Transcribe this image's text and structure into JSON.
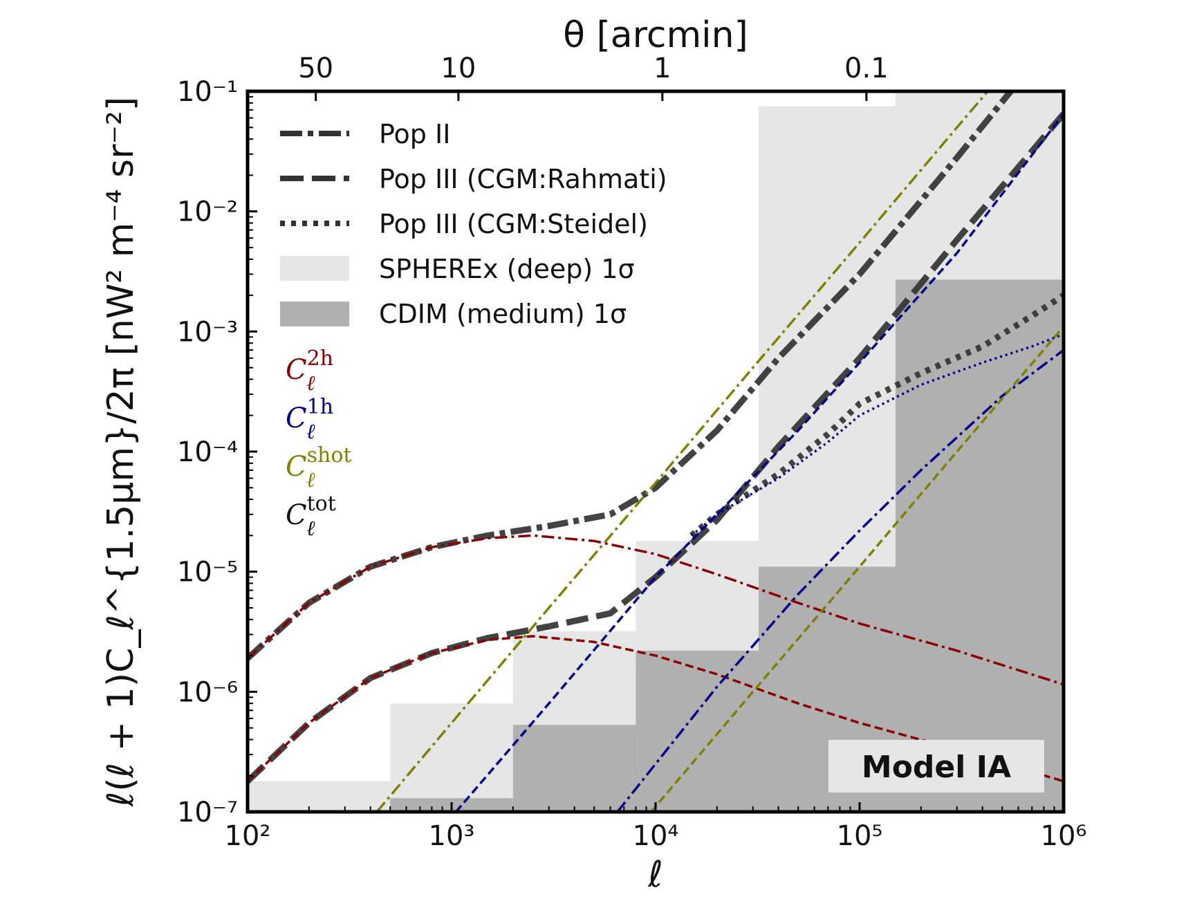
{
  "chart_data": {
    "type": "line",
    "xlabel": "ℓ",
    "ylabel": "ℓ(ℓ + 1)C_ℓ^{1.5μm}/2π [nW² m⁻⁴ sr⁻²]",
    "top_xlabel": "θ [arcmin]",
    "xscale": "log",
    "yscale": "log",
    "xlim": [
      100,
      1000000
    ],
    "ylim": [
      1e-07,
      0.1
    ],
    "grid": false,
    "legend_position": "top-left",
    "x_tick_labels": [
      "10²",
      "10³",
      "10⁴",
      "10⁵",
      "10⁶"
    ],
    "y_tick_labels": [
      "10⁻⁷",
      "10⁻⁶",
      "10⁻⁵",
      "10⁻⁴",
      "10⁻³",
      "10⁻²",
      "10⁻¹"
    ],
    "top_ticks": [
      {
        "label": "50",
        "ell": 216
      },
      {
        "label": "10",
        "ell": 1080
      },
      {
        "label": "1",
        "ell": 10800
      },
      {
        "label": "0.1",
        "ell": 108000
      }
    ],
    "legend": [
      {
        "label": "Pop II",
        "style": "dashdot"
      },
      {
        "label": "Pop III (CGM:Rahmati)",
        "style": "dashed"
      },
      {
        "label": "Pop III (CGM:Steidel)",
        "style": "dotted"
      },
      {
        "label": "SPHEREx (deep) 1σ",
        "style": "band",
        "color": "#e6e6e6"
      },
      {
        "label": "CDIM (medium) 1σ",
        "style": "band",
        "color": "#b0b0b0"
      }
    ],
    "component_labels": [
      {
        "base": "C",
        "sub": "ℓ",
        "sup": "2h",
        "color": "#8b0000"
      },
      {
        "base": "C",
        "sub": "ℓ",
        "sup": "1h",
        "color": "#00008b"
      },
      {
        "base": "C",
        "sub": "ℓ",
        "sup": "shot",
        "color": "#808000"
      },
      {
        "base": "C",
        "sub": "ℓ",
        "sup": "tot",
        "color": "#111111"
      }
    ],
    "annotation": "Model IA",
    "bands": [
      {
        "name": "SPHEREx (deep) 1σ",
        "color": "#e6e6e6",
        "edges": [
          100,
          500,
          2000,
          8000,
          32000,
          150000,
          1000000
        ],
        "values": [
          1.8e-07,
          8e-07,
          3.2e-06,
          1.8e-05,
          0.075,
          0.1
        ]
      },
      {
        "name": "CDIM (medium) 1σ",
        "color": "#b0b0b0",
        "edges": [
          500,
          2000,
          8000,
          32000,
          150000,
          1000000
        ],
        "values": [
          1.3e-07,
          5.3e-07,
          2.2e-06,
          1.1e-05,
          0.0027
        ]
      }
    ],
    "series": [
      {
        "component": "tot",
        "model": "Pop II",
        "color": "#333333",
        "style": "dashdot",
        "thick": true,
        "x": [
          100,
          200,
          400,
          800,
          1500,
          3000,
          6000,
          10000,
          20000,
          40000,
          100000,
          300000,
          1000000
        ],
        "y": [
          1.9e-06,
          5.5e-06,
          1.1e-05,
          1.6e-05,
          2e-05,
          2.4e-05,
          3e-05,
          5e-05,
          0.00015,
          0.0006,
          0.003,
          0.028,
          0.35
        ]
      },
      {
        "component": "tot",
        "model": "Pop III (CGM:Rahmati)",
        "color": "#333333",
        "style": "dashed",
        "thick": true,
        "x": [
          100,
          200,
          400,
          800,
          1500,
          3000,
          6000,
          10000,
          20000,
          40000,
          100000,
          300000,
          1000000
        ],
        "y": [
          1.8e-07,
          5.5e-07,
          1.3e-06,
          2.1e-06,
          2.8e-06,
          3.5e-06,
          4.5e-06,
          9e-06,
          2.7e-05,
          0.00011,
          0.0006,
          0.0058,
          0.065
        ]
      },
      {
        "component": "tot",
        "model": "Pop III (CGM:Steidel)",
        "color": "#333333",
        "style": "dotted",
        "thick": true,
        "x": [
          15000,
          20000,
          40000,
          70000,
          100000,
          200000,
          400000,
          700000,
          1000000
        ],
        "y": [
          2e-05,
          3e-05,
          6.5e-05,
          0.00014,
          0.00025,
          0.00045,
          0.00075,
          0.00135,
          0.002
        ]
      },
      {
        "component": "2h",
        "model": "Pop II",
        "color": "#8b0000",
        "style": "dashdot",
        "x": [
          100,
          200,
          400,
          800,
          1500,
          2500,
          5000,
          10000,
          20000,
          50000,
          100000,
          300000,
          1000000
        ],
        "y": [
          1.9e-06,
          5.5e-06,
          1.1e-05,
          1.6e-05,
          1.9e-05,
          2e-05,
          1.8e-05,
          1.4e-05,
          9.5e-06,
          5.5e-06,
          3.7e-06,
          2.2e-06,
          1.15e-06
        ]
      },
      {
        "component": "2h",
        "model": "Pop III",
        "color": "#8b0000",
        "style": "dashed",
        "x": [
          100,
          200,
          400,
          800,
          1500,
          2500,
          5000,
          10000,
          20000,
          50000,
          100000,
          300000,
          1000000
        ],
        "y": [
          1.8e-07,
          5.5e-07,
          1.3e-06,
          2.1e-06,
          2.7e-06,
          2.9e-06,
          2.6e-06,
          2e-06,
          1.4e-06,
          8e-07,
          5.5e-07,
          3.3e-07,
          1.8e-07
        ]
      },
      {
        "component": "1h",
        "model": "Pop II",
        "color": "#00008b",
        "style": "dashdot",
        "x": [
          6500,
          20000,
          50000,
          100000,
          200000,
          500000,
          1000000
        ],
        "y": [
          1e-07,
          1.1e-06,
          6.5e-06,
          2.2e-05,
          7e-05,
          0.00029,
          0.0007
        ]
      },
      {
        "component": "1h",
        "model": "Pop III (CGM:Rahmati)",
        "color": "#00008b",
        "style": "dashed",
        "x": [
          1050,
          3000,
          10000,
          20000,
          50000,
          100000,
          300000,
          1000000
        ],
        "y": [
          1e-07,
          8e-07,
          9e-06,
          3e-05,
          0.00015,
          0.00055,
          0.0045,
          0.065
        ]
      },
      {
        "component": "1h",
        "model": "Pop III (CGM:Steidel)",
        "color": "#00008b",
        "style": "dotted",
        "x": [
          15000,
          20000,
          40000,
          70000,
          100000,
          200000,
          400000,
          700000,
          1000000
        ],
        "y": [
          2e-05,
          3e-05,
          6e-05,
          0.00012,
          0.0002,
          0.00036,
          0.00055,
          0.00075,
          0.00095
        ]
      },
      {
        "component": "shot",
        "model": "Pop II",
        "color": "#808000",
        "style": "dashdot",
        "x": [
          430,
          1000,
          3000,
          10000,
          30000,
          100000,
          300000,
          1000000
        ],
        "y": [
          1e-07,
          5.5e-07,
          5e-06,
          5.5e-05,
          0.0005,
          0.0055,
          0.05,
          0.55
        ]
      },
      {
        "component": "shot",
        "model": "Pop III",
        "color": "#808000",
        "style": "dashed",
        "x": [
          9500,
          30000,
          100000,
          300000,
          1000000
        ],
        "y": [
          1e-07,
          1e-06,
          1.1e-05,
          0.0001,
          0.0011
        ]
      }
    ]
  }
}
